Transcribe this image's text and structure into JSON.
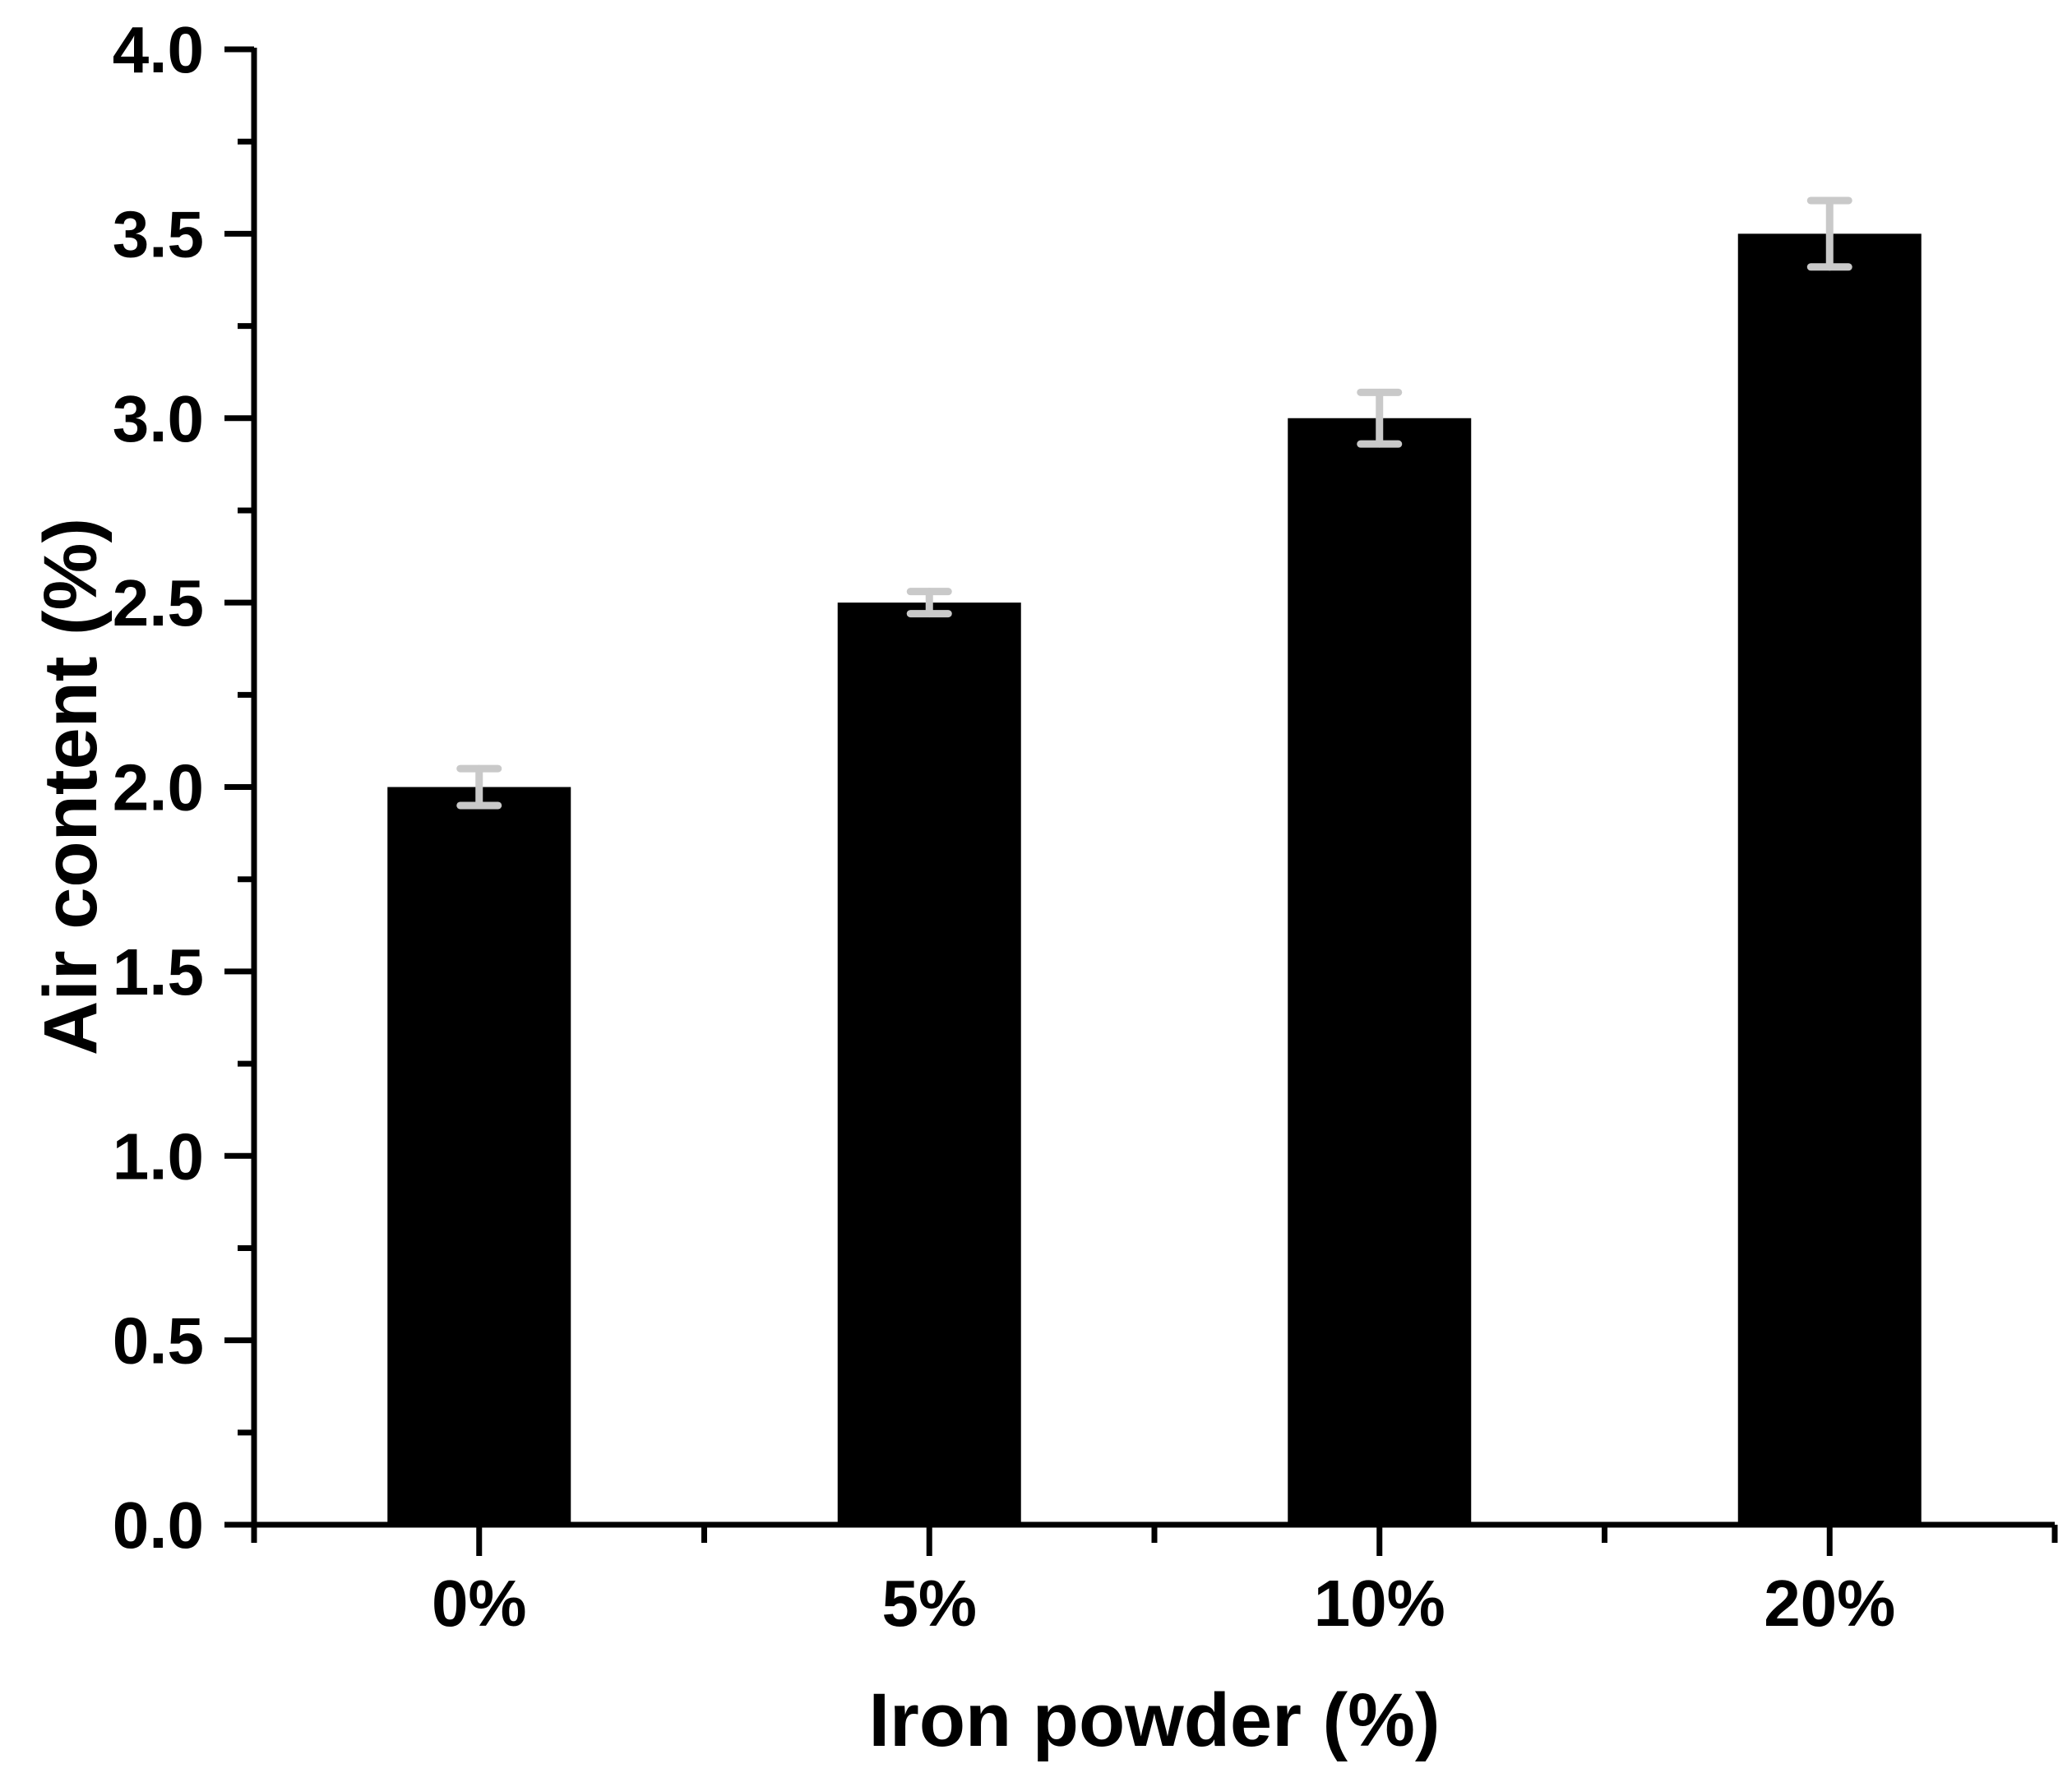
{
  "chart_data": {
    "type": "bar",
    "title": "",
    "xlabel": "Iron powder (%)",
    "ylabel": "Air content (%)",
    "categories": [
      "0%",
      "5%",
      "10%",
      "20%"
    ],
    "values": [
      2.0,
      2.5,
      3.0,
      3.5
    ],
    "errors": [
      0.05,
      0.03,
      0.07,
      0.09
    ],
    "y_tick_labels": [
      "0.0",
      "0.5",
      "1.0",
      "1.5",
      "2.0",
      "2.5",
      "3.0",
      "3.5",
      "4.0"
    ],
    "ylim": [
      0.0,
      4.0
    ],
    "y_major_step": 0.5,
    "y_minor_step": 0.25,
    "grid": false,
    "legend": "none",
    "bar_color": "#000000",
    "error_bar_color": "#c9c9c9",
    "axis_color": "#000000",
    "background": "#ffffff"
  }
}
